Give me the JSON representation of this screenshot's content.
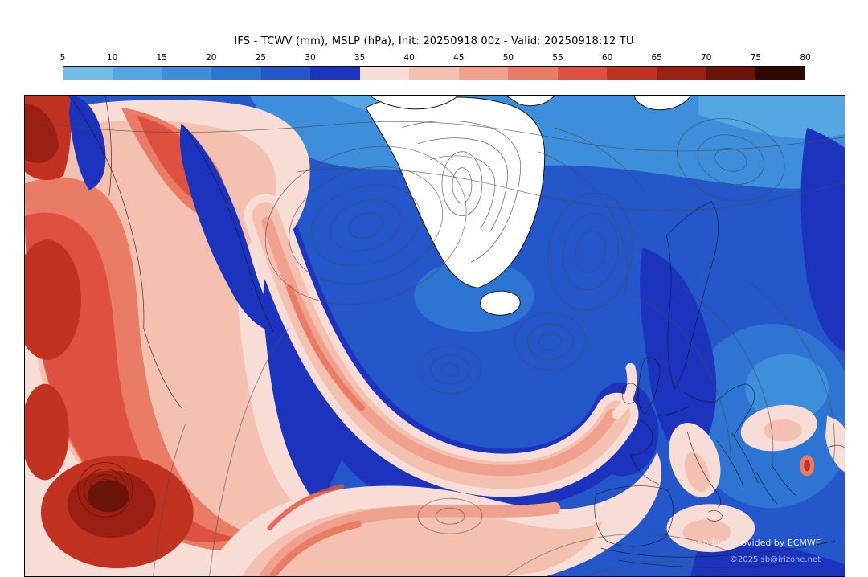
{
  "header": {
    "title": "IFS - TCWV (mm), MSLP (hPa), Init: 20250918 00z - Valid: 20250918:12 TU"
  },
  "colorbar": {
    "ticks": [
      "5",
      "10",
      "15",
      "20",
      "25",
      "30",
      "35",
      "40",
      "45",
      "50",
      "55",
      "60",
      "65",
      "70",
      "75",
      "80"
    ],
    "segment_colors": [
      "#72bce9",
      "#55a7e3",
      "#3d8edb",
      "#2e74d2",
      "#2457c9",
      "#1c33bd",
      "#f7ddd6",
      "#f4c1b1",
      "#f0a18d",
      "#ea7b64",
      "#de5140",
      "#c23221",
      "#9b2013",
      "#6b140a",
      "#2f0703"
    ]
  },
  "map": {
    "attribution_line1": "grib files provided by ECMWF",
    "attribution_line2": "©2025 sb@irizone.net"
  },
  "colors": {
    "blue_light": "#72bce9",
    "blue_10_15": "#55a7e3",
    "blue_15_20": "#3d8edb",
    "blue_20_25": "#2e74d2",
    "blue_25_30": "#2457c9",
    "blue_30_35": "#1c33bd",
    "pink_pale": "#f7ddd6",
    "pink_light": "#f4c1b1",
    "salmon": "#f0a18d",
    "coral": "#ea7b64",
    "red": "#de5140",
    "red_dark": "#c23221",
    "maroon": "#9b2013",
    "maroon_dark": "#6b140a",
    "white_land": "#ffffff",
    "contour": "#4d4d4d",
    "coast": "#1b1b1b",
    "attr1": "#e9e9e9",
    "attr2": "#9fb6e8"
  },
  "chart_data": {
    "type": "heatmap",
    "title": "IFS - TCWV (mm), MSLP (hPa), Init: 20250918 00z - Valid: 20250918:12 TU",
    "model": "IFS",
    "field_shaded": "TCWV (mm) - Total Column Water Vapour",
    "field_contours": "MSLP (hPa) - Mean Sea Level Pressure",
    "init": "20250918 00z",
    "valid": "20250918:12 TU",
    "region": "North Atlantic, Greenland and Europe",
    "colorbar_ticks": [
      5,
      10,
      15,
      20,
      25,
      30,
      35,
      40,
      45,
      50,
      55,
      60,
      65,
      70,
      75,
      80
    ],
    "colorbar_colors": [
      "#72bce9",
      "#55a7e3",
      "#3d8edb",
      "#2e74d2",
      "#2457c9",
      "#1c33bd",
      "#f7ddd6",
      "#f4c1b1",
      "#f0a18d",
      "#ea7b64",
      "#de5140",
      "#c23221",
      "#9b2013",
      "#6b140a",
      "#2f0703"
    ],
    "legend_position": "top",
    "features": [
      "Very moist air mass (45-80 mm TCWV, red/dark-red shading) covering the western Atlantic along the left edge",
      "Spiraling tropical vortex with closed dark-red bands in the lower-left of the map",
      "Narrow moist frontal band (35-50 mm, pink) arcing from the central Atlantic southeast then east toward western Europe",
      "Broad pale-pink moist region along the bottom center (subtropical Atlantic / Iberia) and over Italy, the Balkans and the central Mediterranean",
      "Dry air (15-35 mm, blue shading) over most of the North Atlantic, Greenland Sea, Scandinavia and Europe",
      "Greenland and Iceland rendered white with terrain/contour lines",
      "Closed MSLP isobar centers southwest of Greenland, over the Norwegian Sea and west of the British Isles",
      "Fine gray MSLP contour lines drawn across the whole domain with coastlines in black"
    ]
  }
}
